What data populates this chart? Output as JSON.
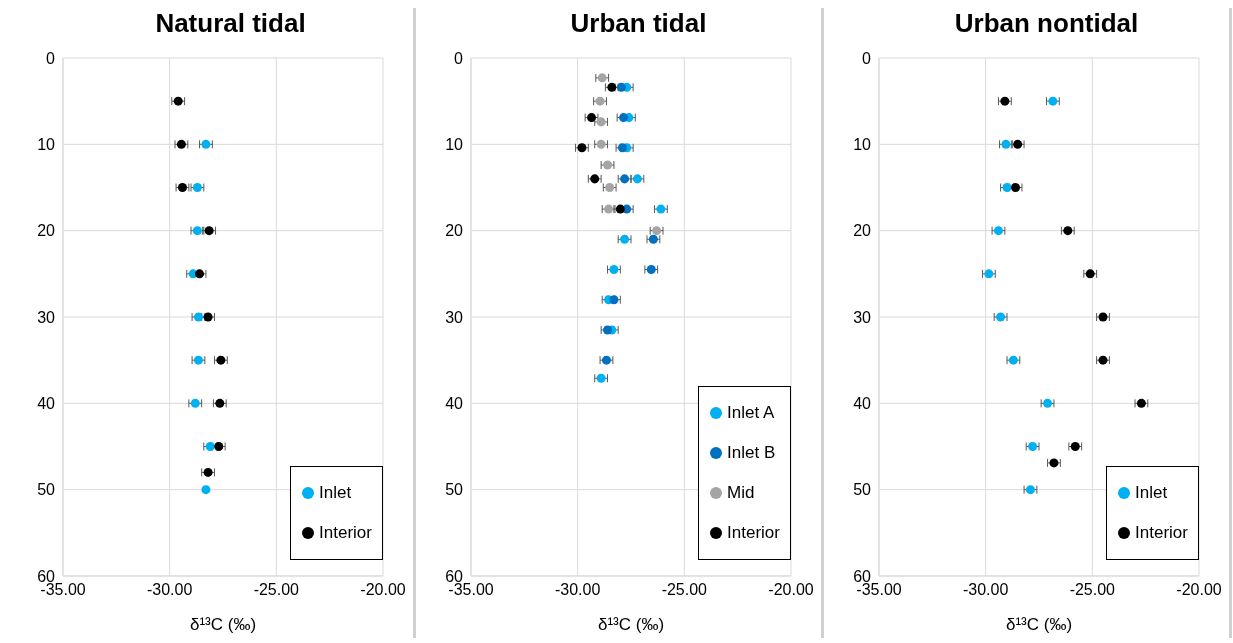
{
  "chart_data": [
    {
      "type": "scatter",
      "title": "Natural tidal",
      "xlabel": "δ¹³C (‰)",
      "xlim": [
        -35,
        -20
      ],
      "xticks": [
        {
          "value": -35,
          "label": "-35.00"
        },
        {
          "value": -30,
          "label": "-30.00"
        },
        {
          "value": -25,
          "label": "-25.00"
        },
        {
          "value": -20,
          "label": "-20.00"
        }
      ],
      "ylim": [
        60,
        0
      ],
      "yticks": [
        0,
        10,
        20,
        30,
        40,
        50,
        60
      ],
      "grid": true,
      "legend": "bottom right",
      "marker": "circle",
      "series": [
        {
          "name": "Inlet",
          "color": "#00b0f0",
          "x": [
            -28.3,
            -28.7,
            -28.7,
            -28.9,
            -28.65,
            -28.65,
            -28.8,
            -28.1,
            -28.3
          ],
          "values": [
            10,
            15,
            20,
            25,
            30,
            35,
            40,
            45,
            50
          ],
          "xerrors": [
            0.3,
            0.3,
            0.3,
            0.3,
            0.3,
            0.3,
            0.3,
            0.3,
            null
          ]
        },
        {
          "name": "Interior",
          "color": "#000000",
          "x": [
            -29.6,
            -29.45,
            -29.4,
            -28.15,
            -28.6,
            -28.2,
            -27.6,
            -27.65,
            -27.7,
            -28.2
          ],
          "values": [
            5,
            10,
            15,
            20,
            25,
            30,
            35,
            40,
            45,
            48
          ],
          "xerrors": [
            0.3,
            0.3,
            0.3,
            0.3,
            0.3,
            0.3,
            0.3,
            0.3,
            0.3,
            0.3
          ]
        }
      ]
    },
    {
      "type": "scatter",
      "title": "Urban tidal",
      "xlabel": "δ¹³C (‰)",
      "xlim": [
        -35,
        -20
      ],
      "xticks": [
        {
          "value": -35,
          "label": "-35.00"
        },
        {
          "value": -30,
          "label": "-30.00"
        },
        {
          "value": -25,
          "label": "-25.00"
        },
        {
          "value": -20,
          "label": "-20.00"
        }
      ],
      "ylim": [
        60,
        0
      ],
      "yticks": [
        0,
        10,
        20,
        30,
        40,
        50,
        60
      ],
      "grid": true,
      "legend": "bottom right",
      "marker": "circle",
      "series": [
        {
          "name": "Inlet A",
          "color": "#00b0f0",
          "x": [
            -27.7,
            -27.6,
            -27.7,
            -27.2,
            -26.1,
            -27.8,
            -28.3,
            -28.55,
            -28.4,
            -28.9
          ],
          "values": [
            3.4,
            6.9,
            10.4,
            14,
            17.5,
            21,
            24.5,
            28,
            31.5,
            37.1
          ],
          "xerrors": [
            0.3,
            0.3,
            0.3,
            0.3,
            0.3,
            0.3,
            0.3,
            0.3,
            0.3,
            0.3
          ]
        },
        {
          "name": "Inlet B",
          "color": "#0070c0",
          "x": [
            -27.95,
            -27.85,
            -27.9,
            -27.8,
            -27.7,
            -26.45,
            -26.55,
            -28.3,
            -28.6,
            -28.65
          ],
          "values": [
            3.4,
            6.9,
            10.4,
            14,
            17.5,
            21,
            24.5,
            28,
            31.5,
            35
          ],
          "xerrors": [
            0.3,
            0.3,
            0.3,
            0.3,
            0.3,
            0.3,
            0.3,
            0.3,
            0.3,
            0.3
          ]
        },
        {
          "name": "Mid",
          "color": "#a5a5a5",
          "x": [
            -28.85,
            -28.95,
            -28.9,
            -28.9,
            -28.6,
            -28.5,
            -28.55,
            -26.3
          ],
          "values": [
            2.3,
            5,
            7.4,
            10,
            12.4,
            15,
            17.5,
            20
          ],
          "xerrors": [
            0.3,
            0.3,
            0.3,
            0.3,
            0.3,
            0.3,
            0.3,
            0.3
          ]
        },
        {
          "name": "Interior",
          "color": "#000000",
          "x": [
            -28.4,
            -29.35,
            -29.8,
            -29.2,
            -28
          ],
          "values": [
            3.4,
            6.9,
            10.4,
            14,
            17.5
          ],
          "xerrors": [
            0.3,
            0.3,
            0.3,
            0.3,
            0.3
          ]
        }
      ]
    },
    {
      "type": "scatter",
      "title": "Urban nontidal",
      "xlabel": "δ¹³C (‰)",
      "xlim": [
        -35,
        -20
      ],
      "xticks": [
        {
          "value": -35,
          "label": "-35.00"
        },
        {
          "value": -30,
          "label": "-30.00"
        },
        {
          "value": -25,
          "label": "-25.00"
        },
        {
          "value": -20,
          "label": "-20.00"
        }
      ],
      "ylim": [
        60,
        0
      ],
      "yticks": [
        0,
        10,
        20,
        30,
        40,
        50,
        60
      ],
      "grid": true,
      "legend": "bottom right",
      "marker": "circle",
      "series": [
        {
          "name": "Inlet",
          "color": "#00b0f0",
          "x": [
            -26.85,
            -29.05,
            -29,
            -29.4,
            -29.85,
            -29.3,
            -28.7,
            -27.1,
            -27.8,
            -27.9
          ],
          "values": [
            5,
            10,
            15,
            20,
            25,
            30,
            35,
            40,
            45,
            50
          ],
          "xerrors": [
            0.3,
            0.3,
            0.3,
            0.3,
            0.3,
            0.3,
            0.3,
            0.3,
            0.3,
            0.3
          ]
        },
        {
          "name": "Interior",
          "color": "#000000",
          "x": [
            -29.1,
            -28.5,
            -28.6,
            -26.15,
            -25.1,
            -24.5,
            -24.5,
            -22.7,
            -25.8,
            -26.8
          ],
          "values": [
            5,
            10,
            15,
            20,
            25,
            30,
            35,
            40,
            45,
            46.9
          ],
          "xerrors": [
            0.3,
            0.3,
            0.3,
            0.3,
            0.3,
            0.3,
            0.3,
            0.3,
            0.3,
            0.3
          ]
        }
      ]
    }
  ]
}
